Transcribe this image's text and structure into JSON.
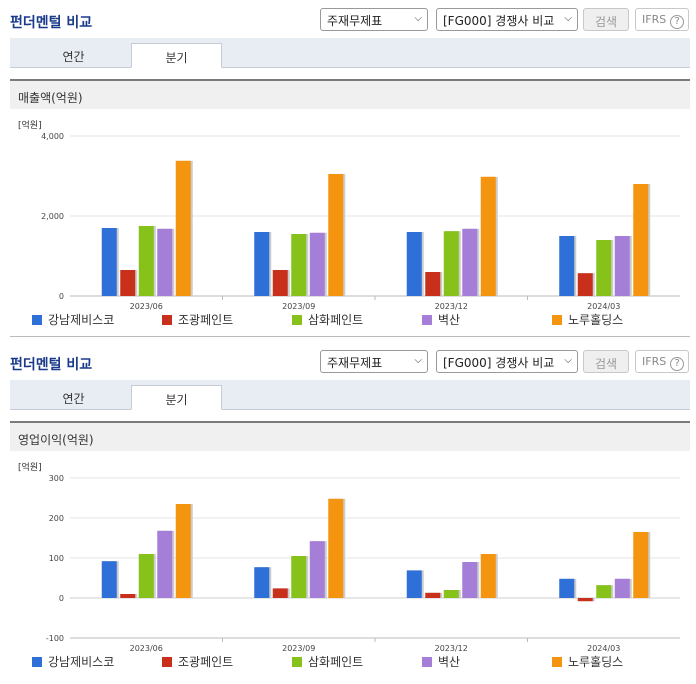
{
  "sections": [
    {
      "title": "펀더멘털 비교",
      "select1": "주재무제표",
      "select2": "[FG000] 경쟁사 비교",
      "search_label": "검색",
      "ifrs_label": "IFRS",
      "ifrs_help": "?",
      "tabs": [
        {
          "label": "연간",
          "active": false
        },
        {
          "label": "분기",
          "active": true
        }
      ],
      "metric": "매출액(억원)"
    },
    {
      "title": "펀더멘털 비교",
      "select1": "주재무제표",
      "select2": "[FG000] 경쟁사 비교",
      "search_label": "검색",
      "ifrs_label": "IFRS",
      "ifrs_help": "?",
      "tabs": [
        {
          "label": "연간",
          "active": false
        },
        {
          "label": "분기",
          "active": true
        }
      ],
      "metric": "영업이익(억원)"
    }
  ],
  "chart_data": [
    {
      "type": "bar",
      "title": "매출액(억원)",
      "unit_label": "[억원]",
      "categories": [
        "2023/06",
        "2023/09",
        "2023/12",
        "2024/03"
      ],
      "ylim": [
        0,
        4000
      ],
      "yticks": [
        0,
        2000,
        4000
      ],
      "ytick_labels": [
        "0",
        "2,000",
        "4,000"
      ],
      "legend_position": "bottom",
      "series": [
        {
          "name": "강남제비스코",
          "color": "#2f6fd8",
          "values": [
            1700,
            1600,
            1600,
            1500
          ]
        },
        {
          "name": "조광페인트",
          "color": "#c9301b",
          "values": [
            650,
            650,
            600,
            570
          ]
        },
        {
          "name": "삼화페인트",
          "color": "#87c21a",
          "values": [
            1750,
            1550,
            1620,
            1400
          ]
        },
        {
          "name": "벽산",
          "color": "#a57ed8",
          "values": [
            1680,
            1580,
            1680,
            1500
          ]
        },
        {
          "name": "노루홀딩스",
          "color": "#f5950f",
          "values": [
            3380,
            3050,
            2980,
            2800
          ]
        }
      ]
    },
    {
      "type": "bar",
      "title": "영업이익(억원)",
      "unit_label": "[억원]",
      "categories": [
        "2023/06",
        "2023/09",
        "2023/12",
        "2024/03"
      ],
      "ylim": [
        -100,
        300
      ],
      "yticks": [
        -100,
        0,
        100,
        200,
        300
      ],
      "ytick_labels": [
        "-100",
        "0",
        "100",
        "200",
        "300"
      ],
      "legend_position": "bottom",
      "series": [
        {
          "name": "강남제비스코",
          "color": "#2f6fd8",
          "values": [
            92,
            77,
            69,
            48
          ]
        },
        {
          "name": "조광페인트",
          "color": "#c9301b",
          "values": [
            10,
            24,
            13,
            -8
          ]
        },
        {
          "name": "삼화페인트",
          "color": "#87c21a",
          "values": [
            110,
            105,
            20,
            32
          ]
        },
        {
          "name": "벽산",
          "color": "#a57ed8",
          "values": [
            168,
            142,
            90,
            48
          ]
        },
        {
          "name": "노루홀딩스",
          "color": "#f5950f",
          "values": [
            235,
            248,
            110,
            165
          ]
        }
      ]
    }
  ]
}
